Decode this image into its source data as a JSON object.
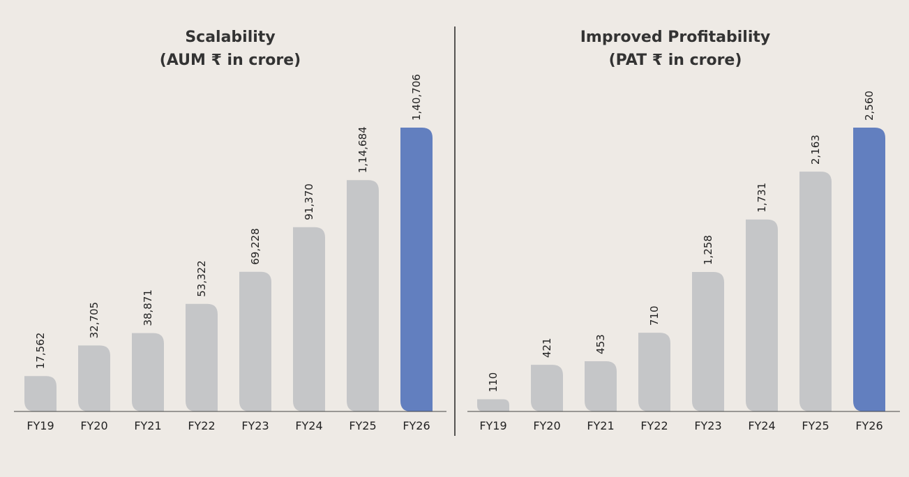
{
  "chart_data": [
    {
      "type": "bar",
      "title": "Scalability",
      "subtitle": "(AUM ₹ in crore)",
      "categories": [
        "FY19",
        "FY20",
        "FY21",
        "FY22",
        "FY23",
        "FY24",
        "FY25",
        "FY26"
      ],
      "values": [
        17562,
        32705,
        38871,
        53322,
        69228,
        91370,
        114684,
        140706
      ],
      "value_labels": [
        "17,562",
        "32,705",
        "38,871",
        "53,322",
        "69,228",
        "91,370",
        "1,14,684",
        "1,40,706"
      ],
      "colors": [
        "#c5c6c8",
        "#c5c6c8",
        "#c5c6c8",
        "#c5c6c8",
        "#c5c6c8",
        "#c5c6c8",
        "#c5c6c8",
        "#627fbf"
      ]
    },
    {
      "type": "bar",
      "title": "Improved Profitability",
      "subtitle": "(PAT ₹ in crore)",
      "categories": [
        "FY19",
        "FY20",
        "FY21",
        "FY22",
        "FY23",
        "FY24",
        "FY25",
        "FY26"
      ],
      "values": [
        110,
        421,
        453,
        710,
        1258,
        1731,
        2163,
        2560
      ],
      "value_labels": [
        "110",
        "421",
        "453",
        "710",
        "1,258",
        "1,731",
        "2,163",
        "2,560"
      ],
      "colors": [
        "#c5c6c8",
        "#c5c6c8",
        "#c5c6c8",
        "#c5c6c8",
        "#c5c6c8",
        "#c5c6c8",
        "#c5c6c8",
        "#627fbf"
      ]
    }
  ]
}
